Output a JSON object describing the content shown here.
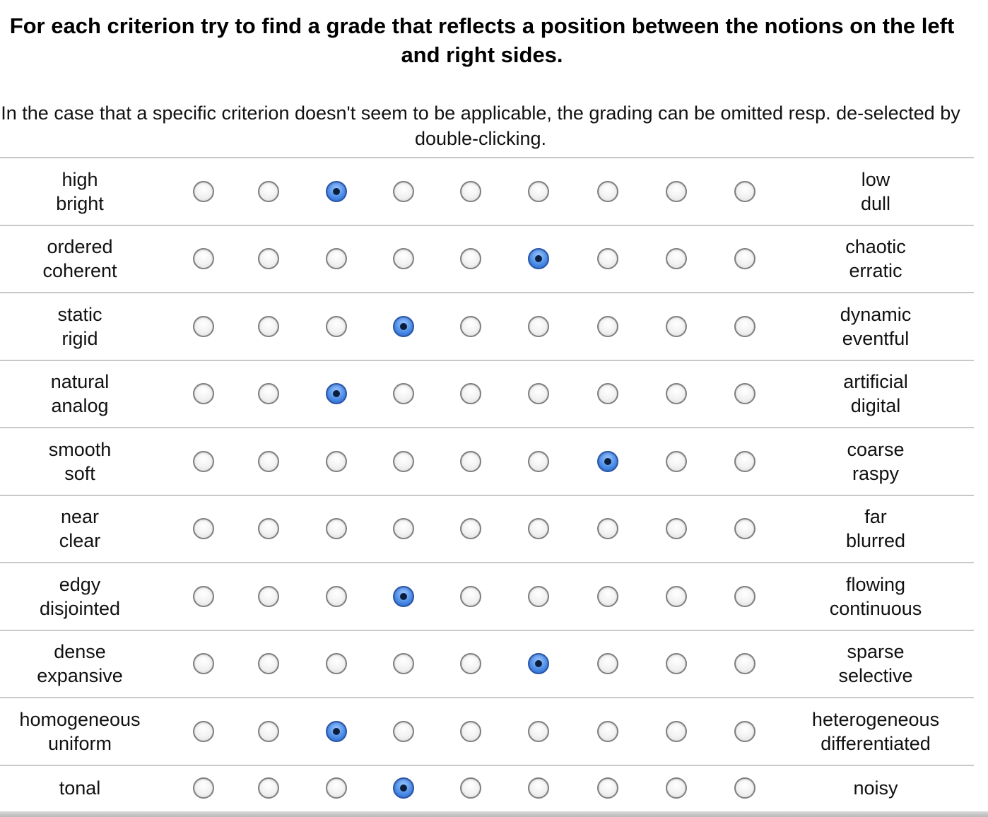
{
  "heading": "For each criterion try to find a grade that reflects a position between the notions on the left and right sides.",
  "instruction": "In the case that a specific criterion doesn't seem to be applicable, the grading can be omitted resp. de-selected by double-clicking.",
  "scale_points": 9,
  "colors": {
    "selected_radio": "#4f8fe8",
    "unselected_radio_border": "#7f7f7f",
    "divider": "#c9c9c9"
  },
  "rows": [
    {
      "left": [
        "high",
        "bright"
      ],
      "right": [
        "low",
        "dull"
      ],
      "selected": 3
    },
    {
      "left": [
        "ordered",
        "coherent"
      ],
      "right": [
        "chaotic",
        "erratic"
      ],
      "selected": 6
    },
    {
      "left": [
        "static",
        "rigid"
      ],
      "right": [
        "dynamic",
        "eventful"
      ],
      "selected": 4
    },
    {
      "left": [
        "natural",
        "analog"
      ],
      "right": [
        "artificial",
        "digital"
      ],
      "selected": 3
    },
    {
      "left": [
        "smooth",
        "soft"
      ],
      "right": [
        "coarse",
        "raspy"
      ],
      "selected": 7
    },
    {
      "left": [
        "near",
        "clear"
      ],
      "right": [
        "far",
        "blurred"
      ],
      "selected": null
    },
    {
      "left": [
        "edgy",
        "disjointed"
      ],
      "right": [
        "flowing",
        "continuous"
      ],
      "selected": 4
    },
    {
      "left": [
        "dense",
        "expansive"
      ],
      "right": [
        "sparse",
        "selective"
      ],
      "selected": 6
    },
    {
      "left": [
        "homogeneous",
        "uniform"
      ],
      "right": [
        "heterogeneous",
        "differentiated"
      ],
      "selected": 3
    },
    {
      "left": [
        "tonal"
      ],
      "right": [
        "noisy"
      ],
      "selected": 4
    }
  ]
}
